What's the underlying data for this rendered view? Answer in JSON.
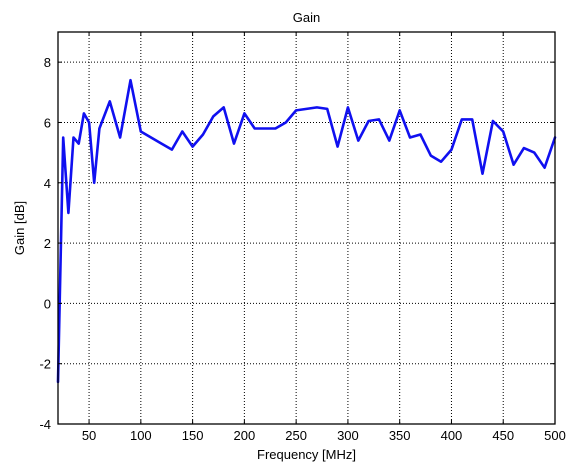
{
  "chart_data": {
    "type": "line",
    "title": "Gain",
    "xlabel": "Frequency [MHz]",
    "ylabel": "Gain [dB]",
    "xlim": [
      20,
      500
    ],
    "ylim": [
      -4,
      9
    ],
    "xticks": [
      50,
      100,
      150,
      200,
      250,
      300,
      350,
      400,
      450,
      500
    ],
    "yticks": [
      -4,
      -2,
      0,
      2,
      4,
      6,
      8
    ],
    "grid": true,
    "colors": {
      "series": "#1010f0"
    },
    "series": [
      {
        "x": [
          20,
          25,
          30,
          35,
          40,
          45,
          50,
          55,
          60,
          70,
          80,
          90,
          100,
          120,
          130,
          140,
          150,
          160,
          170,
          180,
          190,
          200,
          210,
          220,
          230,
          240,
          250,
          260,
          270,
          280,
          290,
          300,
          310,
          320,
          330,
          340,
          350,
          360,
          370,
          380,
          390,
          400,
          410,
          420,
          430,
          440,
          450,
          460,
          470,
          480,
          490,
          500
        ],
        "y": [
          -2.6,
          5.5,
          3.0,
          5.5,
          5.3,
          6.3,
          6.0,
          4.0,
          5.8,
          6.7,
          5.5,
          7.4,
          5.7,
          5.3,
          5.1,
          5.7,
          5.2,
          5.6,
          6.2,
          6.5,
          5.3,
          6.3,
          5.8,
          5.8,
          5.8,
          6.0,
          6.4,
          6.45,
          6.5,
          6.45,
          5.2,
          6.5,
          5.4,
          6.05,
          6.1,
          5.4,
          6.4,
          5.5,
          5.6,
          4.9,
          4.7,
          5.1,
          6.1,
          6.1,
          4.3,
          6.05,
          5.7,
          4.6,
          5.15,
          5.0,
          4.5,
          5.5
        ]
      }
    ]
  }
}
